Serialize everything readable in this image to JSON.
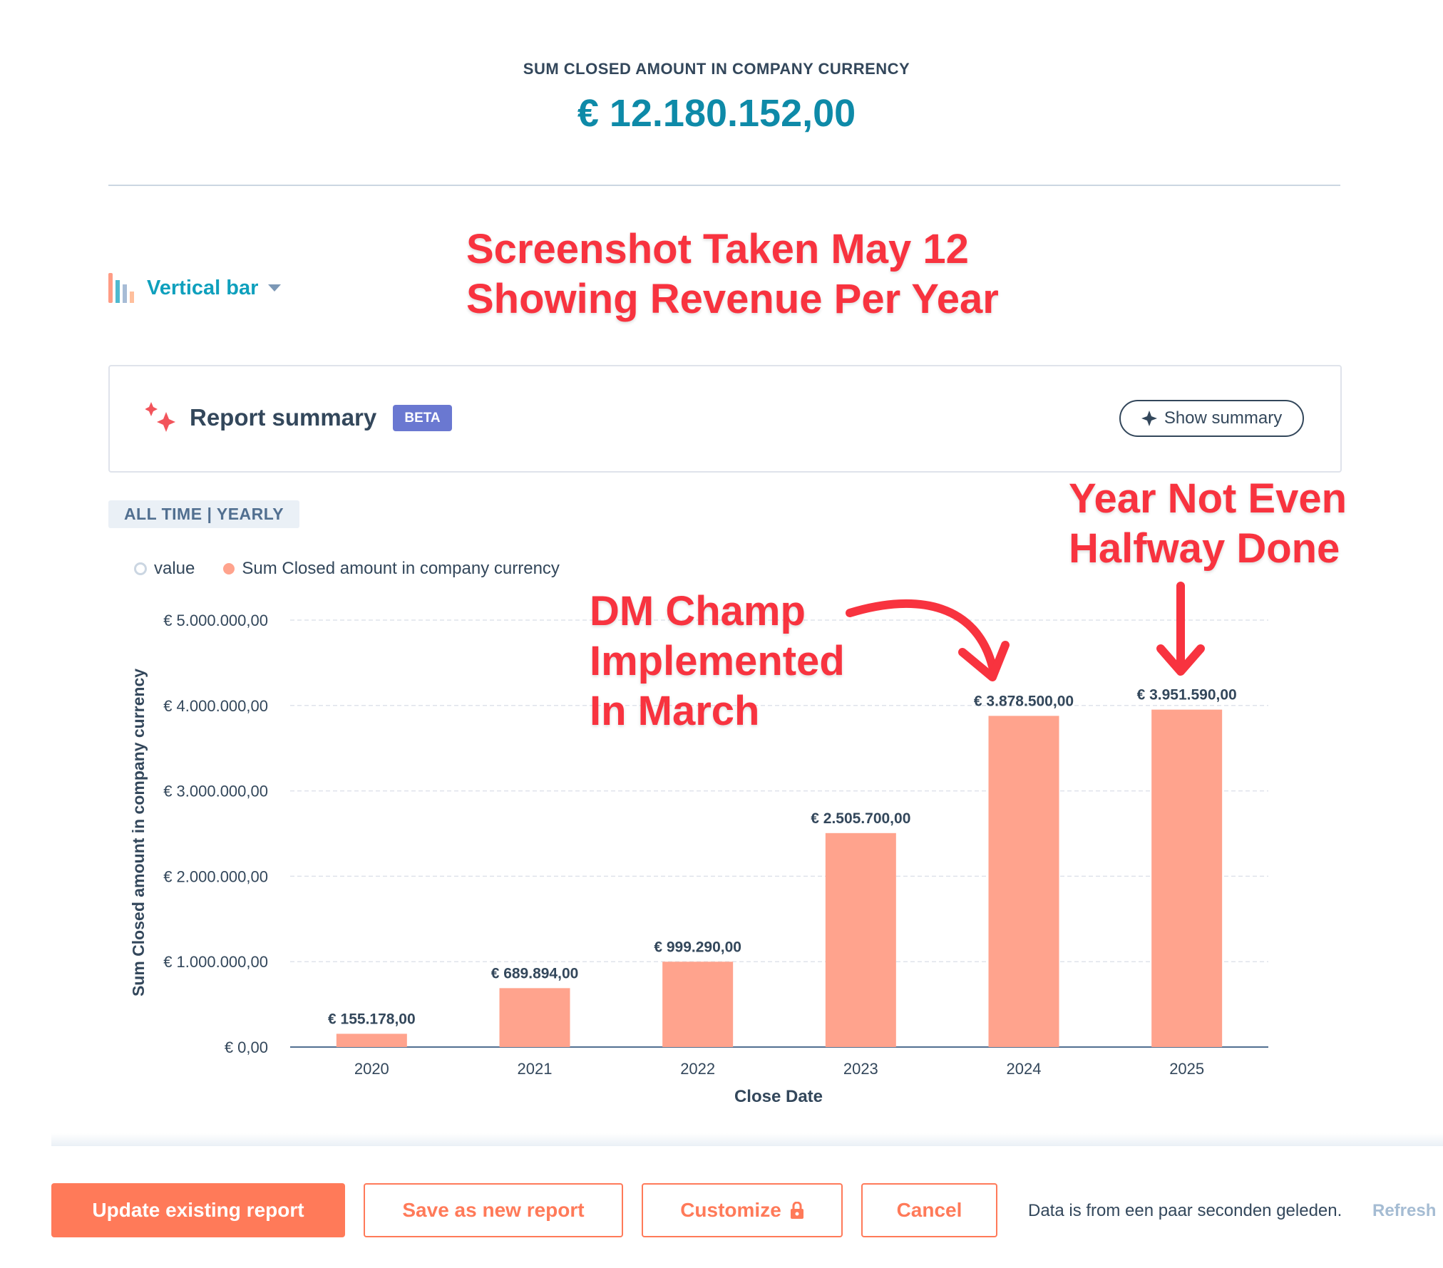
{
  "kpi": {
    "title": "SUM CLOSED AMOUNT IN COMPANY CURRENCY",
    "value": "€ 12.180.152,00",
    "value_color": "#0e8aa8"
  },
  "viz_selector": {
    "icon": "vertical-bar-chart-icon",
    "label": "Vertical bar"
  },
  "annotations": {
    "top_line1": "Screenshot Taken May 12",
    "top_line2": "Showing Revenue Per Year",
    "right_line1": "Year Not Even",
    "right_line2": "Halfway Done",
    "mid_line1": "DM Champ",
    "mid_line2": "Implemented",
    "mid_line3": "In March",
    "color": "#f8333f"
  },
  "summary": {
    "title": "Report summary",
    "badge": "BETA",
    "button": "Show summary"
  },
  "date_range": "ALL TIME | YEARLY",
  "legend": [
    {
      "label": "value",
      "marker": "hollow-circle"
    },
    {
      "label": "Sum Closed amount in company currency",
      "marker": "filled-circle",
      "color": "#ffa38d"
    }
  ],
  "chart_data": {
    "type": "bar",
    "categories": [
      "2020",
      "2021",
      "2022",
      "2023",
      "2024",
      "2025"
    ],
    "series": [
      {
        "name": "Sum Closed amount in company currency",
        "values": [
          155178,
          689894,
          999290,
          2505700,
          3878500,
          3951590
        ],
        "color": "#ffa38d"
      }
    ],
    "data_labels": [
      "€ 155.178,00",
      "€ 689.894,00",
      "€ 999.290,00",
      "€ 2.505.700,00",
      "€ 3.878.500,00",
      "€ 3.951.590,00"
    ],
    "xlabel": "Close Date",
    "ylabel": "Sum Closed amount in company currency",
    "ylim": [
      0,
      5000000
    ],
    "yticks": [
      0,
      1000000,
      2000000,
      3000000,
      4000000,
      5000000
    ],
    "ytick_labels": [
      "€ 0,00",
      "€ 1.000.000,00",
      "€ 2.000.000,00",
      "€ 3.000.000,00",
      "€ 4.000.000,00",
      "€ 5.000.000,00"
    ],
    "grid": true
  },
  "footer": {
    "update": "Update existing report",
    "save_new": "Save as new report",
    "customize": "Customize",
    "cancel": "Cancel",
    "data_age": "Data is from een paar seconden geleden.",
    "refresh": "Refresh"
  }
}
